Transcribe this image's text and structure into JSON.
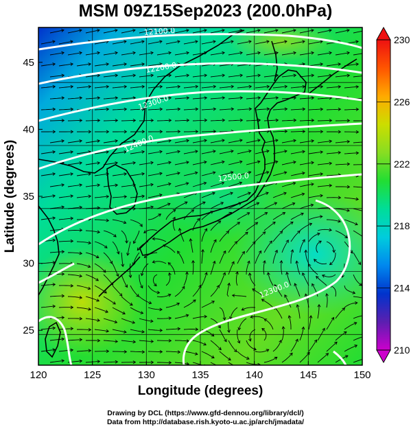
{
  "title": "MSM 09Z15Sep2023 (200.0hPa)",
  "axes": {
    "xlabel": "Longitude (degrees)",
    "ylabel": "Latitude  (degrees)",
    "xticks": [
      "120",
      "125",
      "130",
      "135",
      "140",
      "145",
      "150"
    ],
    "yticks": [
      "25",
      "30",
      "35",
      "40",
      "45"
    ],
    "xlim": [
      120,
      150
    ],
    "ylim": [
      22.4,
      47.6
    ]
  },
  "colorbar": {
    "min": 210,
    "max": 230,
    "labels": [
      "230",
      "226",
      "222",
      "218",
      "214",
      "210"
    ],
    "colors": [
      "#cc00cc",
      "#5b1fb0",
      "#0033cc",
      "#0088ee",
      "#00ccdd",
      "#00dd99",
      "#22dd33",
      "#88dd22",
      "#ccdd00",
      "#ffaa00",
      "#ff5500",
      "#ee1111"
    ]
  },
  "contours": {
    "color": "#ffffff",
    "labels": [
      "12100.0",
      "12200.0",
      "12300.0",
      "12400.0",
      "12500.0",
      "12300.0"
    ]
  },
  "credits": {
    "line1": "Drawing by DCL (https://www.gfd-dennou.org/library/dcl/)",
    "line2": "Data from http://database.rish.kyoto-u.ac.jp/arch/jmadata/"
  }
}
